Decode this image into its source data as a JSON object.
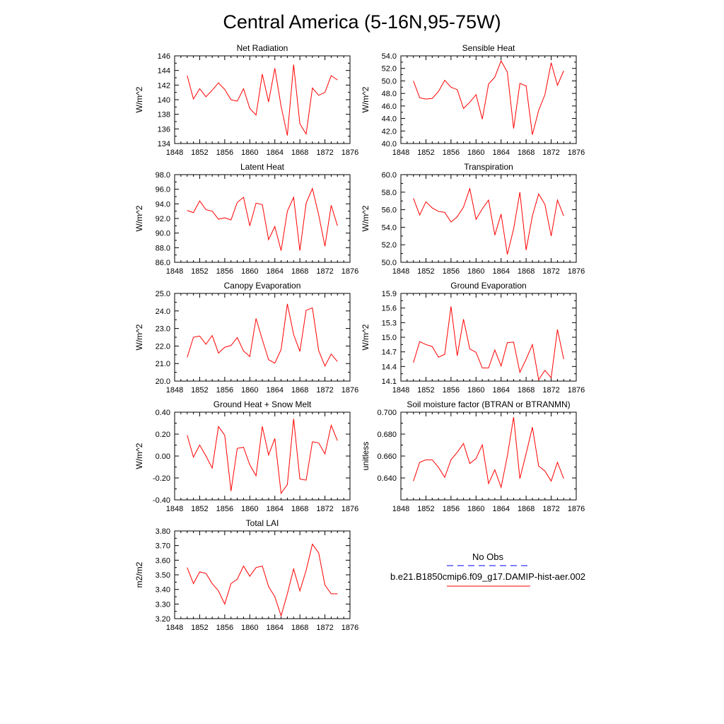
{
  "title": "Central America (5-16N,95-75W)",
  "colors": {
    "model_line": "#ff0000",
    "obs_line": "#0000ff"
  },
  "legend": {
    "obs_label": "No Obs",
    "model_label": "b.e21.B1850cmip6.f09_g17.DAMIP-hist-aer.002"
  },
  "chart_data": [
    {
      "type": "line",
      "title": "Net Radiation",
      "ylabel": "W/m^2",
      "xlim": [
        1848,
        1876
      ],
      "x_ticks": [
        "1848",
        "1852",
        "1856",
        "1860",
        "1864",
        "1868",
        "1872",
        "1876"
      ],
      "ylim": [
        134,
        146
      ],
      "y_ticks": [
        "134",
        "136",
        "138",
        "140",
        "142",
        "144",
        "146"
      ],
      "x": [
        1850,
        1851,
        1852,
        1853,
        1854,
        1855,
        1856,
        1857,
        1858,
        1859,
        1860,
        1861,
        1862,
        1863,
        1864,
        1865,
        1866,
        1867,
        1868,
        1869,
        1870,
        1871,
        1872,
        1873,
        1874
      ],
      "series": [
        {
          "values": [
            143.3,
            140.1,
            141.5,
            140.4,
            141.3,
            142.3,
            141.4,
            140.0,
            139.8,
            141.5,
            138.8,
            137.9,
            143.5,
            139.7,
            144.3,
            139.1,
            135.1,
            144.8,
            136.7,
            135.3,
            141.6,
            140.6,
            141.0,
            143.3,
            142.7
          ]
        }
      ]
    },
    {
      "type": "line",
      "title": "Sensible Heat",
      "ylabel": "W/m^2",
      "xlim": [
        1848,
        1876
      ],
      "x_ticks": [
        "1848",
        "1852",
        "1856",
        "1860",
        "1864",
        "1868",
        "1872",
        "1876"
      ],
      "ylim": [
        40,
        54
      ],
      "y_ticks": [
        "40.0",
        "42.0",
        "44.0",
        "46.0",
        "48.0",
        "50.0",
        "52.0",
        "54.0"
      ],
      "x": [
        1850,
        1851,
        1852,
        1853,
        1854,
        1855,
        1856,
        1857,
        1858,
        1859,
        1860,
        1861,
        1862,
        1863,
        1864,
        1865,
        1866,
        1867,
        1868,
        1869,
        1870,
        1871,
        1872,
        1873,
        1874
      ],
      "series": [
        {
          "values": [
            50.0,
            47.3,
            47.1,
            47.2,
            48.3,
            50.1,
            49.0,
            48.6,
            45.6,
            46.6,
            47.8,
            43.9,
            49.5,
            50.6,
            53.2,
            51.4,
            42.4,
            49.6,
            49.2,
            41.4,
            45.3,
            47.8,
            52.9,
            49.3,
            51.6
          ]
        }
      ]
    },
    {
      "type": "line",
      "title": "Latent Heat",
      "ylabel": "W/m^2",
      "xlim": [
        1848,
        1876
      ],
      "x_ticks": [
        "1848",
        "1852",
        "1856",
        "1860",
        "1864",
        "1868",
        "1872",
        "1876"
      ],
      "ylim": [
        86,
        98
      ],
      "y_ticks": [
        "86.0",
        "88.0",
        "90.0",
        "92.0",
        "94.0",
        "96.0",
        "98.0"
      ],
      "x": [
        1850,
        1851,
        1852,
        1853,
        1854,
        1855,
        1856,
        1857,
        1858,
        1859,
        1860,
        1861,
        1862,
        1863,
        1864,
        1865,
        1866,
        1867,
        1868,
        1869,
        1870,
        1871,
        1872,
        1873,
        1874
      ],
      "series": [
        {
          "values": [
            93.1,
            92.8,
            94.4,
            93.2,
            93.0,
            91.9,
            92.1,
            91.8,
            94.2,
            94.9,
            91.0,
            94.1,
            93.9,
            89.1,
            90.9,
            87.6,
            93.0,
            94.9,
            87.6,
            94.1,
            96.1,
            92.5,
            88.2,
            93.8,
            91.0
          ]
        }
      ]
    },
    {
      "type": "line",
      "title": "Transpiration",
      "ylabel": "W/m^2",
      "xlim": [
        1848,
        1876
      ],
      "x_ticks": [
        "1848",
        "1852",
        "1856",
        "1860",
        "1864",
        "1868",
        "1872",
        "1876"
      ],
      "ylim": [
        50,
        60
      ],
      "y_ticks": [
        "50.0",
        "52.0",
        "54.0",
        "56.0",
        "58.0",
        "60.0"
      ],
      "x": [
        1850,
        1851,
        1852,
        1853,
        1854,
        1855,
        1856,
        1857,
        1858,
        1859,
        1860,
        1861,
        1862,
        1863,
        1864,
        1865,
        1866,
        1867,
        1868,
        1869,
        1870,
        1871,
        1872,
        1873,
        1874
      ],
      "series": [
        {
          "values": [
            57.3,
            55.4,
            56.9,
            56.2,
            55.8,
            55.7,
            54.6,
            55.2,
            56.3,
            58.4,
            54.9,
            56.1,
            57.1,
            53.1,
            55.5,
            50.9,
            53.8,
            58.0,
            51.4,
            55.3,
            57.8,
            56.6,
            53.0,
            57.1,
            55.3
          ]
        }
      ]
    },
    {
      "type": "line",
      "title": "Canopy Evaporation",
      "ylabel": "W/m^2",
      "xlim": [
        1848,
        1876
      ],
      "x_ticks": [
        "1848",
        "1852",
        "1856",
        "1860",
        "1864",
        "1868",
        "1872",
        "1876"
      ],
      "ylim": [
        20,
        25
      ],
      "y_ticks": [
        "20.0",
        "21.0",
        "22.0",
        "23.0",
        "24.0",
        "25.0"
      ],
      "x": [
        1850,
        1851,
        1852,
        1853,
        1854,
        1855,
        1856,
        1857,
        1858,
        1859,
        1860,
        1861,
        1862,
        1863,
        1864,
        1865,
        1866,
        1867,
        1868,
        1869,
        1870,
        1871,
        1872,
        1873,
        1874
      ],
      "series": [
        {
          "values": [
            21.35,
            22.5,
            22.57,
            22.1,
            22.6,
            21.6,
            21.93,
            22.03,
            22.48,
            21.72,
            21.4,
            23.57,
            22.37,
            21.22,
            21.02,
            21.8,
            24.4,
            22.66,
            21.69,
            24.04,
            24.17,
            21.74,
            20.86,
            21.54,
            21.11
          ]
        }
      ]
    },
    {
      "type": "line",
      "title": "Ground Evaporation",
      "ylabel": "W/m^2",
      "xlim": [
        1848,
        1876
      ],
      "x_ticks": [
        "1848",
        "1852",
        "1856",
        "1860",
        "1864",
        "1868",
        "1872",
        "1876"
      ],
      "ylim": [
        14.1,
        15.9
      ],
      "y_ticks": [
        "14.1",
        "14.4",
        "14.7",
        "15.0",
        "15.3",
        "15.6",
        "15.9"
      ],
      "x": [
        1850,
        1851,
        1852,
        1853,
        1854,
        1855,
        1856,
        1857,
        1858,
        1859,
        1860,
        1861,
        1862,
        1863,
        1864,
        1865,
        1866,
        1867,
        1868,
        1869,
        1870,
        1871,
        1872,
        1873,
        1874
      ],
      "series": [
        {
          "values": [
            14.48,
            14.91,
            14.85,
            14.81,
            14.59,
            14.65,
            15.63,
            14.62,
            15.37,
            14.76,
            14.69,
            14.37,
            14.37,
            14.74,
            14.41,
            14.89,
            14.9,
            14.28,
            14.55,
            14.85,
            14.13,
            14.32,
            14.17,
            15.16,
            14.55
          ]
        }
      ]
    },
    {
      "type": "line",
      "title": "Ground Heat + Snow Melt",
      "ylabel": "W/m^2",
      "xlim": [
        1848,
        1876
      ],
      "x_ticks": [
        "1848",
        "1852",
        "1856",
        "1860",
        "1864",
        "1868",
        "1872",
        "1876"
      ],
      "ylim": [
        -0.4,
        0.4
      ],
      "y_ticks": [
        "-0.40",
        "-0.20",
        "0.00",
        "0.20",
        "0.40"
      ],
      "x": [
        1850,
        1851,
        1852,
        1853,
        1854,
        1855,
        1856,
        1857,
        1858,
        1859,
        1860,
        1861,
        1862,
        1863,
        1864,
        1865,
        1866,
        1867,
        1868,
        1869,
        1870,
        1871,
        1872,
        1873,
        1874
      ],
      "series": [
        {
          "values": [
            0.19,
            -0.01,
            0.1,
            0.0,
            -0.11,
            0.27,
            0.19,
            -0.32,
            0.07,
            0.08,
            -0.08,
            -0.18,
            0.27,
            0.01,
            0.16,
            -0.34,
            -0.26,
            0.34,
            -0.21,
            -0.22,
            0.13,
            0.12,
            0.02,
            0.28,
            0.14
          ]
        }
      ]
    },
    {
      "type": "line",
      "title": "Soil moisture factor (BTRAN or BTRANMN)",
      "ylabel": "unitless",
      "xlim": [
        1848,
        1876
      ],
      "x_ticks": [
        "1848",
        "1852",
        "1856",
        "1860",
        "1864",
        "1868",
        "1872",
        "1876"
      ],
      "ylim": [
        0.63,
        0.7
      ],
      "y_ticks": [
        "",
        "0.640",
        "0.660",
        "0.680",
        "0.700"
      ],
      "x": [
        1850,
        1851,
        1852,
        1853,
        1854,
        1855,
        1856,
        1857,
        1858,
        1859,
        1860,
        1861,
        1862,
        1863,
        1864,
        1865,
        1866,
        1867,
        1868,
        1869,
        1870,
        1871,
        1872,
        1873,
        1874
      ],
      "series": [
        {
          "values": [
            0.645,
            0.66,
            0.662,
            0.662,
            0.656,
            0.648,
            0.662,
            0.668,
            0.675,
            0.659,
            0.663,
            0.674,
            0.643,
            0.654,
            0.64,
            0.665,
            0.696,
            0.647,
            0.667,
            0.688,
            0.657,
            0.653,
            0.645,
            0.66,
            0.647
          ]
        }
      ]
    },
    {
      "type": "line",
      "title": "Total LAI",
      "ylabel": "m2/m2",
      "xlim": [
        1848,
        1876
      ],
      "x_ticks": [
        "1848",
        "1852",
        "1856",
        "1860",
        "1864",
        "1868",
        "1872",
        "1876"
      ],
      "ylim": [
        3.2,
        3.8
      ],
      "y_ticks": [
        "3.20",
        "3.30",
        "3.40",
        "3.50",
        "3.60",
        "3.70",
        "3.80"
      ],
      "x": [
        1850,
        1851,
        1852,
        1853,
        1854,
        1855,
        1856,
        1857,
        1858,
        1859,
        1860,
        1861,
        1862,
        1863,
        1864,
        1865,
        1866,
        1867,
        1868,
        1869,
        1870,
        1871,
        1872,
        1873,
        1874
      ],
      "series": [
        {
          "values": [
            3.55,
            3.44,
            3.52,
            3.51,
            3.44,
            3.39,
            3.3,
            3.44,
            3.47,
            3.56,
            3.49,
            3.55,
            3.56,
            3.42,
            3.35,
            3.22,
            3.37,
            3.54,
            3.39,
            3.53,
            3.71,
            3.65,
            3.43,
            3.37,
            3.37
          ]
        }
      ]
    }
  ]
}
